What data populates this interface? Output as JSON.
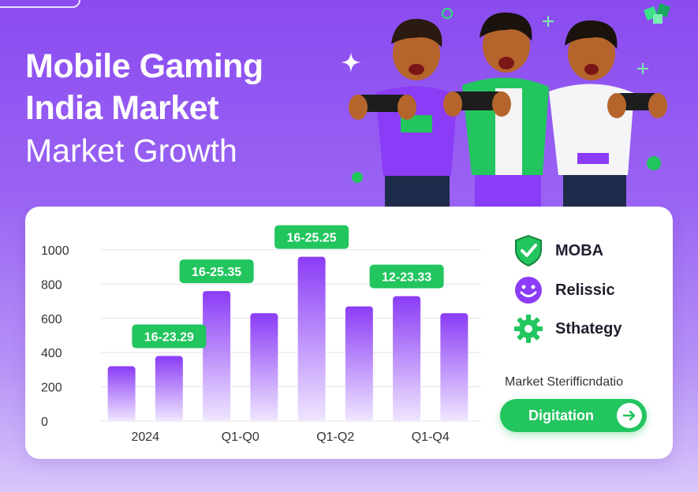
{
  "title": {
    "line1": "Mobile Gaming",
    "line2": "India Market",
    "line3": "Market Growth"
  },
  "chart_data": {
    "type": "bar",
    "categories": [
      "2024",
      "",
      "Q1-Q0",
      "",
      "Q1-Q2",
      "",
      "Q1-Q4",
      ""
    ],
    "values": [
      320,
      380,
      760,
      630,
      960,
      670,
      730,
      630
    ],
    "ylim": [
      0,
      1000
    ],
    "yticks": [
      "0",
      "200",
      "400",
      "600",
      "800",
      "1000"
    ],
    "xlabel": "",
    "ylabel": "",
    "annotations": [
      {
        "text": "16-23.29",
        "bar_index": 1
      },
      {
        "text": "16-25.35",
        "bar_index": 2
      },
      {
        "text": "16-25.25",
        "bar_index": 4
      },
      {
        "text": "12-23.33",
        "bar_index": 6
      }
    ],
    "grid": true,
    "legend_position": "right",
    "colors": {
      "bar_top": "#8b3cf6",
      "bar_bottom": "#efe6ff",
      "badge": "#22c55e",
      "grid": "#e3e3ea"
    }
  },
  "legend": [
    {
      "label": "MOBA",
      "icon": "shield-check-icon"
    },
    {
      "label": "Relissic",
      "icon": "smiley-icon"
    },
    {
      "label": "Sthategy",
      "icon": "gear-icon"
    }
  ],
  "market_label": "Market Sterifficndatio",
  "cta": {
    "label": "Digitation",
    "icon": "arrow-right-icon"
  },
  "colors": {
    "accent_purple": "#8b3cf6",
    "accent_green": "#22c55e"
  }
}
